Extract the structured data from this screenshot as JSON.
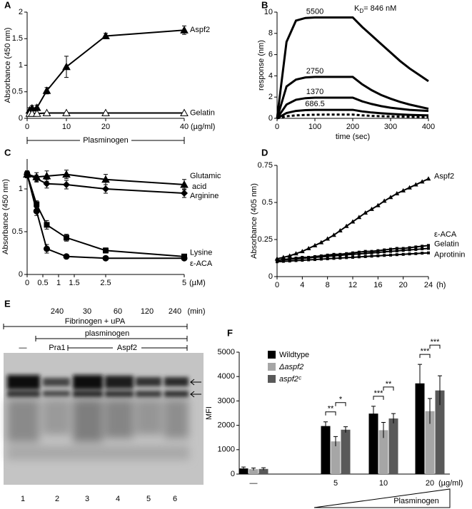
{
  "chart_data": [
    {
      "type": "line",
      "label": "A",
      "ylabel": "Absorbance (450 nm)",
      "x": [
        0.625,
        1.25,
        2.5,
        5,
        10,
        20,
        40
      ],
      "xlim": [
        0,
        40
      ],
      "xticks": [
        0,
        10,
        20,
        40
      ],
      "x_unit": "(µg/ml)",
      "x_annotation": "Plasminogen",
      "ylim": [
        0,
        2
      ],
      "yticks": [
        0,
        0.5,
        1,
        1.5,
        2
      ],
      "series": [
        {
          "name": "Aspf2",
          "color": "#000000",
          "marker": "triangle",
          "values": [
            0.15,
            0.19,
            0.2,
            0.52,
            0.97,
            1.55,
            1.66
          ],
          "errors": [
            0.05,
            0.05,
            0.05,
            0.06,
            0.2,
            0.05,
            0.08
          ]
        },
        {
          "name": "Gelatin",
          "color": "#000000",
          "marker": "open-triangle",
          "values": [
            0.09,
            0.09,
            0.09,
            0.1,
            0.1,
            0.1,
            0.1
          ]
        }
      ]
    },
    {
      "type": "line",
      "label": "B",
      "xlabel": "time (sec)",
      "ylabel": "response (nm)",
      "annotation": {
        "main": "K",
        "subscript": "D",
        "rest": "= 846 nM"
      },
      "x": [
        0,
        25,
        50,
        75,
        100,
        125,
        150,
        175,
        200,
        225,
        250,
        275,
        300,
        325,
        350,
        375,
        400
      ],
      "xlim": [
        0,
        400
      ],
      "xticks": [
        0,
        100,
        200,
        300,
        400
      ],
      "ylim": [
        0,
        10
      ],
      "yticks": [
        0,
        2,
        4,
        6,
        8,
        10
      ],
      "series": [
        {
          "name": "5500",
          "color": "#000000",
          "marker": "none",
          "values": [
            0,
            7.2,
            9.2,
            9.45,
            9.5,
            9.5,
            9.5,
            9.5,
            9.5,
            8.6,
            7.8,
            7.0,
            6.2,
            5.4,
            4.7,
            4.1,
            3.5
          ]
        },
        {
          "name": "2750",
          "color": "#000000",
          "marker": "none",
          "values": [
            0,
            3.0,
            3.65,
            3.85,
            3.9,
            3.9,
            3.9,
            3.9,
            3.9,
            3.2,
            2.65,
            2.2,
            1.85,
            1.55,
            1.3,
            1.1,
            0.9
          ]
        },
        {
          "name": "1370",
          "color": "#000000",
          "marker": "none",
          "values": [
            0,
            1.3,
            1.75,
            1.9,
            1.95,
            1.95,
            1.95,
            1.95,
            1.95,
            1.6,
            1.35,
            1.15,
            1.0,
            0.9,
            0.8,
            0.75,
            0.7
          ]
        },
        {
          "name": "686.5",
          "color": "#000000",
          "marker": "none",
          "values": [
            0,
            0.5,
            0.7,
            0.77,
            0.8,
            0.8,
            0.8,
            0.8,
            0.8,
            0.65,
            0.55,
            0.48,
            0.42,
            0.37,
            0.33,
            0.3,
            0.28
          ]
        },
        {
          "color": "#000000",
          "marker": "none",
          "dashed": true,
          "values": [
            0,
            0.2,
            0.28,
            0.32,
            0.34,
            0.35,
            0.35,
            0.35,
            0.35,
            0.28,
            0.23,
            0.2,
            0.18,
            0.16,
            0.15,
            0.14,
            0.13
          ]
        }
      ]
    },
    {
      "type": "line",
      "label": "C",
      "ylabel": "Absorbance (450 nm)",
      "x": [
        0,
        0.3,
        0.625,
        1.25,
        2.5,
        5
      ],
      "xlim": [
        0,
        5
      ],
      "xticks": [
        0,
        0.5,
        1,
        1.5,
        2.5,
        5
      ],
      "x_unit": "(µM)",
      "ylim": [
        0,
        1.35
      ],
      "yticks": [
        0,
        0.5,
        1
      ],
      "series": [
        {
          "name": "Glutamic acid",
          "color": "#000000",
          "marker": "triangle",
          "values": [
            1.17,
            1.14,
            1.15,
            1.17,
            1.11,
            1.05
          ],
          "errors": [
            0.04,
            0.05,
            0.06,
            0.05,
            0.06,
            0.06
          ]
        },
        {
          "name": "Arginine",
          "color": "#000000",
          "marker": "diamond",
          "values": [
            1.17,
            1.12,
            1.06,
            1.05,
            1.0,
            0.95
          ],
          "errors": [
            0.04,
            0.04,
            0.05,
            0.05,
            0.05,
            0.05
          ]
        },
        {
          "name": "Lysine",
          "color": "#000000",
          "marker": "square",
          "values": [
            1.17,
            0.82,
            0.58,
            0.43,
            0.28,
            0.21
          ],
          "errors": [
            0.04,
            0.04,
            0.05,
            0.04,
            0.03,
            0.02
          ]
        },
        {
          "name": "ε-ACA",
          "color": "#000000",
          "marker": "circle",
          "values": [
            1.17,
            0.74,
            0.3,
            0.21,
            0.19,
            0.19
          ],
          "errors": [
            0.04,
            0.05,
            0.05,
            0.02,
            0.02,
            0.02
          ]
        }
      ]
    },
    {
      "type": "line",
      "label": "D",
      "ylabel": "Absorbance (405 nm)",
      "x": [
        0,
        1,
        2,
        3,
        4,
        5,
        6,
        7,
        8,
        9,
        10,
        11,
        12,
        13,
        14,
        15,
        16,
        17,
        18,
        19,
        20,
        21,
        22,
        23,
        24
      ],
      "xlim": [
        0,
        24
      ],
      "xticks": [
        0,
        4,
        8,
        12,
        16,
        20,
        24
      ],
      "x_unit": "(h)",
      "ylim": [
        0,
        0.75
      ],
      "yticks": [
        0,
        0.25,
        0.5,
        0.75
      ],
      "series": [
        {
          "name": "Aspf2",
          "color": "#000000",
          "marker": "small-triangle",
          "values": [
            0.12,
            0.13,
            0.14,
            0.155,
            0.17,
            0.19,
            0.21,
            0.23,
            0.255,
            0.28,
            0.31,
            0.34,
            0.37,
            0.4,
            0.43,
            0.455,
            0.48,
            0.51,
            0.535,
            0.56,
            0.58,
            0.6,
            0.62,
            0.64,
            0.66
          ]
        },
        {
          "name": "ε-ACA",
          "color": "#000000",
          "marker": "small-square",
          "values": [
            0.11,
            0.115,
            0.12,
            0.125,
            0.13,
            0.13,
            0.135,
            0.14,
            0.145,
            0.15,
            0.15,
            0.155,
            0.16,
            0.165,
            0.17,
            0.17,
            0.175,
            0.18,
            0.185,
            0.19,
            0.19,
            0.195,
            0.2,
            0.205,
            0.21
          ]
        },
        {
          "name": "Gelatin",
          "color": "#000000",
          "marker": "small-square",
          "values": [
            0.11,
            0.113,
            0.117,
            0.12,
            0.123,
            0.127,
            0.13,
            0.133,
            0.137,
            0.14,
            0.143,
            0.147,
            0.15,
            0.153,
            0.157,
            0.16,
            0.163,
            0.167,
            0.17,
            0.173,
            0.177,
            0.18,
            0.183,
            0.187,
            0.19
          ]
        },
        {
          "name": "Aprotinin",
          "color": "#000000",
          "marker": "small-square",
          "values": [
            0.1,
            0.103,
            0.105,
            0.108,
            0.11,
            0.113,
            0.115,
            0.118,
            0.12,
            0.123,
            0.125,
            0.128,
            0.13,
            0.133,
            0.135,
            0.138,
            0.14,
            0.143,
            0.145,
            0.148,
            0.15,
            0.153,
            0.155,
            0.158,
            0.16
          ]
        }
      ]
    },
    {
      "type": "bar",
      "label": "F",
      "ylabel": "MFI",
      "categories": [
        "—",
        "5",
        "10",
        "20"
      ],
      "x_unit": "(µg/ml)",
      "x_annotation": "Plasminogen",
      "ylim": [
        0,
        5000
      ],
      "yticks": [
        0,
        1000,
        2000,
        3000,
        4000,
        5000
      ],
      "series": [
        {
          "name": "Wildtype",
          "color": "#000000",
          "values": [
            230,
            1970,
            2480,
            3720
          ],
          "errors": [
            60,
            170,
            300,
            780
          ]
        },
        {
          "name": "Δaspf2",
          "color": "#a6a6a6",
          "values": [
            200,
            1340,
            1800,
            2580
          ],
          "errors": [
            50,
            200,
            320,
            520
          ]
        },
        {
          "name": "aspf2ᶜ",
          "color": "#595959",
          "values": [
            210,
            1820,
            2280,
            3430
          ],
          "errors": [
            50,
            120,
            200,
            600
          ]
        }
      ],
      "significance": [
        "**",
        "*",
        "***",
        "**",
        "***",
        "***"
      ]
    }
  ],
  "gel": {
    "label": "E",
    "times": [
      240,
      30,
      60,
      120,
      240
    ],
    "time_unit": "(min)",
    "conditions": [
      "Fibrinogen + uPA",
      "plasminogen"
    ],
    "lane_groups": [
      "—",
      "Pra1",
      "Aspf2"
    ],
    "lanes": [
      1,
      2,
      3,
      4,
      5,
      6
    ]
  }
}
